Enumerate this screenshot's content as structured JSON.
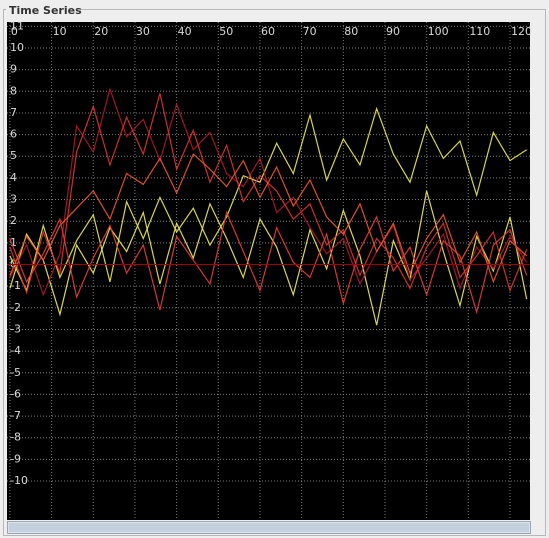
{
  "chart_data": {
    "type": "line",
    "title": "Time Series",
    "x": [
      0,
      4,
      8,
      12,
      16,
      20,
      24,
      28,
      32,
      36,
      40,
      44,
      48,
      52,
      56,
      60,
      64,
      68,
      72,
      76,
      80,
      84,
      88,
      92,
      96,
      100,
      104,
      108,
      112,
      116,
      120,
      124
    ],
    "series": [
      {
        "color": "#ecec4c",
        "values": [
          0.4,
          -1.2,
          1.8,
          -0.6,
          1.1,
          2.3,
          -0.8,
          2.9,
          1.2,
          3.1,
          1.5,
          2.6,
          0.9,
          2.2,
          4.1,
          3.8,
          5.6,
          4.2,
          6.9,
          3.9,
          5.8,
          4.6,
          7.2,
          5.1,
          3.8,
          6.4,
          4.9,
          5.7,
          3.2,
          6.1,
          4.8,
          5.3
        ]
      },
      {
        "color": "#f2ee5a",
        "values": [
          -1.1,
          1.4,
          0.2,
          -2.3,
          0.9,
          -0.4,
          1.7,
          0.6,
          2.4,
          -0.9,
          1.9,
          0.3,
          2.8,
          1.2,
          -0.6,
          2.1,
          0.8,
          -1.4,
          1.6,
          -0.2,
          2.5,
          0.4,
          -2.8,
          1.1,
          -0.7,
          3.4,
          0.6,
          -1.9,
          1.3,
          -0.3,
          2.2,
          -1.6
        ]
      },
      {
        "color": "#b0182a",
        "values": [
          -0.6,
          0.9,
          -1.4,
          0.5,
          6.4,
          5.2,
          8.1,
          5.9,
          6.7,
          4.8,
          7.4,
          5.3,
          6.1,
          4.2,
          3.6,
          4.9,
          2.4,
          3.1,
          1.7,
          0.5,
          1.2,
          -0.9,
          0.6,
          1.8,
          -0.7,
          0.3,
          1.4,
          -1.1,
          0.8,
          -0.2,
          1.3,
          0.1
        ]
      },
      {
        "color": "#e03434",
        "values": [
          0.8,
          -1.3,
          1.5,
          -0.4,
          5.2,
          7.3,
          4.6,
          6.8,
          5.1,
          7.9,
          4.4,
          6.2,
          3.8,
          5.5,
          2.9,
          4.1,
          3.4,
          2.1,
          2.8,
          0.9,
          1.6,
          -0.5,
          1.2,
          0.3,
          -1.1,
          0.8,
          1.9,
          -0.6,
          0.4,
          1.5,
          -1.2,
          0.7
        ]
      },
      {
        "color": "#f05a2c",
        "values": [
          -0.5,
          1.3,
          0.2,
          1.8,
          2.6,
          3.4,
          2.1,
          4.2,
          3.7,
          4.9,
          3.3,
          5.1,
          4.4,
          3.6,
          4.8,
          3.1,
          4.5,
          2.7,
          3.9,
          2.2,
          1.4,
          2.8,
          0.6,
          1.9,
          -0.4,
          1.2,
          2.3,
          0.1,
          1.5,
          -0.8,
          1.1,
          0.4
        ]
      },
      {
        "color": "#e8403a",
        "values": [
          1.2,
          -0.8,
          0.5,
          2.1,
          -1.5,
          0.3,
          1.8,
          -0.4,
          0.9,
          -2.1,
          1.3,
          0.2,
          -0.9,
          2.4,
          0.6,
          -1.2,
          1.7,
          0.1,
          -0.6,
          1.4,
          -1.8,
          0.7,
          2.2,
          -0.3,
          0.8,
          -1.4,
          1.1,
          0.4,
          -2.2,
          0.9,
          1.6,
          -0.5
        ]
      }
    ],
    "xlim": [
      -0.7,
      124.8
    ],
    "ylim": [
      -11.8,
      11.2
    ],
    "xticks": [
      0,
      10,
      20,
      30,
      40,
      50,
      60,
      70,
      80,
      90,
      100,
      110,
      120
    ],
    "yticks": [
      -10,
      -9,
      -8,
      -7,
      -6,
      -5,
      -4,
      -3,
      -2,
      -1,
      0,
      1,
      2,
      3,
      4,
      5,
      6,
      7,
      8,
      9,
      10,
      11
    ],
    "grid": true
  }
}
